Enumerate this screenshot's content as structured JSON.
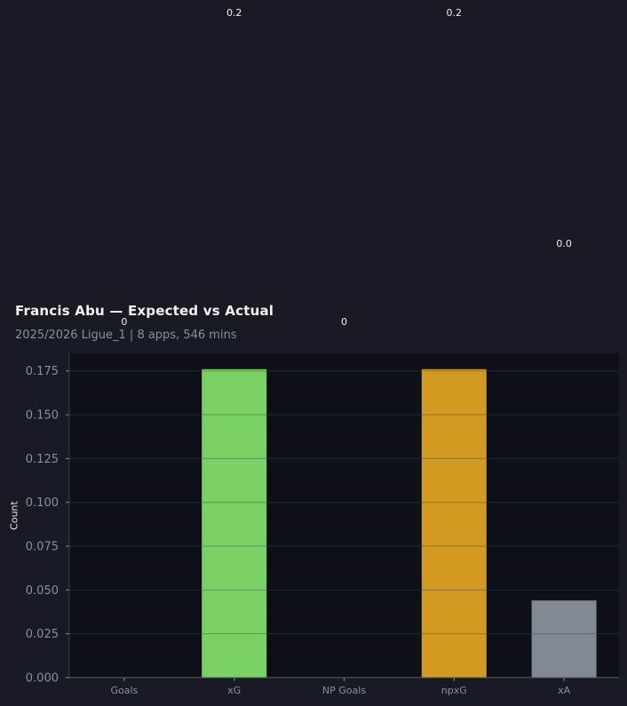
{
  "chart_data": {
    "type": "bar",
    "title": "Francis Abu — Expected vs Actual",
    "subtitle": "2025/2026 Ligue_1 | 8 apps, 546 mins",
    "xlabel": "",
    "ylabel": "Count",
    "categories": [
      "Goals",
      "xG",
      "NP Goals",
      "npxG",
      "xA"
    ],
    "values": [
      0,
      0.176,
      0,
      0.176,
      0.044
    ],
    "data_labels": [
      "0",
      "0.2",
      "0",
      "0.2",
      "0.0"
    ],
    "colors": [
      "#7ad163",
      "#7ad163",
      "#d39a22",
      "#d39a22",
      "#808892"
    ],
    "ylim": [
      0,
      0.185
    ],
    "yticks": [
      "0.000",
      "0.025",
      "0.050",
      "0.075",
      "0.100",
      "0.125",
      "0.150",
      "0.175"
    ],
    "grid": true,
    "background": "#181b23",
    "plot_background": "#0d1017"
  }
}
